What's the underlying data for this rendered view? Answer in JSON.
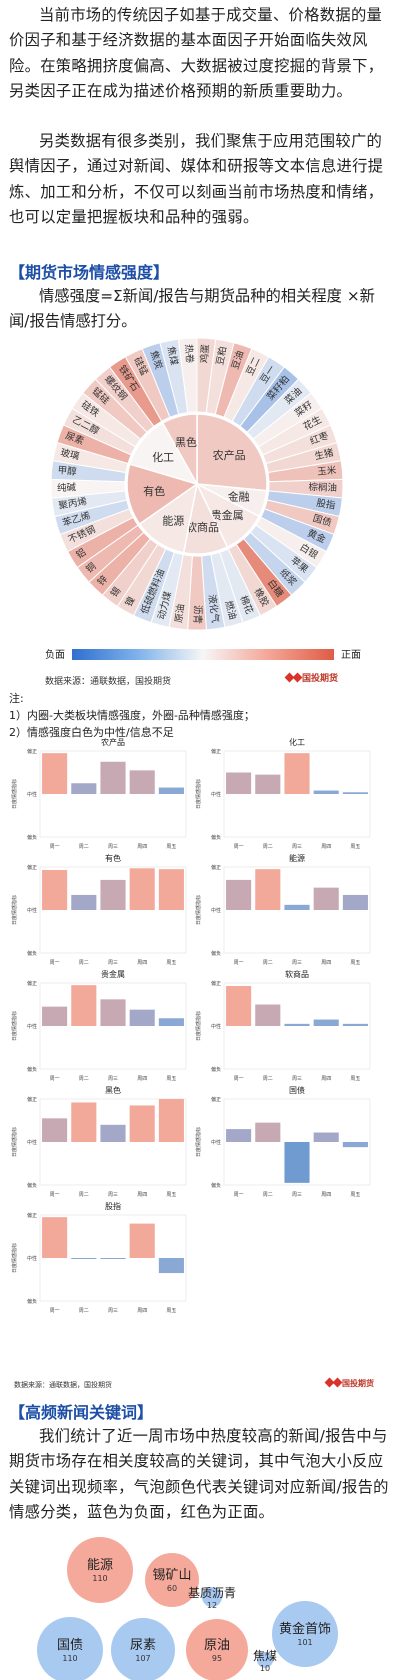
{
  "intro": {
    "para1": "当前市场的传统因子如基于成交量、价格数据的量价因子和基于经济数据的基本面因子开始面临失效风险。在策略拥挤度偏高、大数据被过度挖掘的背景下，另类因子正在成为描述价格预期的新质重要助力。",
    "para2": "另类数据有很多类别，我们聚焦于应用范围较广的舆情因子，通过对新闻、媒体和研报等文本信息进行提炼、加工和分析，不仅可以刻画当前市场热度和情绪，也可以定量把握板块和品种的强弱。"
  },
  "section1": {
    "heading": "【期货市场情感强度】",
    "formula": "情感强度=Σ新闻/报告与期货品种的相关程度 ×新闻/报告情感打分。"
  },
  "sunburst": {
    "inner": [
      {
        "label": "农产品",
        "value": 0.3
      },
      {
        "label": "金融",
        "value": 0.05
      },
      {
        "label": "贵金属",
        "value": 0.1
      },
      {
        "label": "软商品",
        "value": 0.15
      },
      {
        "label": "能源",
        "value": 0.1
      },
      {
        "label": "有色",
        "value": 0.4
      },
      {
        "label": "化工",
        "value": 0.02
      },
      {
        "label": "黑色",
        "value": 0.3
      }
    ],
    "outer": [
      {
        "label": "鸡蛋",
        "value": 0.2
      },
      {
        "label": "豆粕",
        "value": 0.15
      },
      {
        "label": "豆油",
        "value": 0.4
      },
      {
        "label": "豆二",
        "value": 0.1
      },
      {
        "label": "豆一",
        "value": -0.2
      },
      {
        "label": "菜籽粕",
        "value": -0.4
      },
      {
        "label": "菜油",
        "value": -0.1
      },
      {
        "label": "菜籽",
        "value": 0.05
      },
      {
        "label": "花生",
        "value": 0.1
      },
      {
        "label": "红枣",
        "value": 0.15
      },
      {
        "label": "生猪",
        "value": 0.2
      },
      {
        "label": "玉米",
        "value": 0.35
      },
      {
        "label": "棕榈油",
        "value": 0.25
      },
      {
        "label": "股指",
        "value": -0.3
      },
      {
        "label": "国债",
        "value": 0.3
      },
      {
        "label": "黄金",
        "value": -0.3
      },
      {
        "label": "白银",
        "value": 0.05
      },
      {
        "label": "苹果",
        "value": -0.15
      },
      {
        "label": "纸浆",
        "value": -0.25
      },
      {
        "label": "白糖",
        "value": 0.7
      },
      {
        "label": "橡胶",
        "value": 0.2
      },
      {
        "label": "棉花",
        "value": -0.1
      },
      {
        "label": "燃油",
        "value": -0.1
      },
      {
        "label": "液化气",
        "value": -0.2
      },
      {
        "label": "沥青",
        "value": 0.3
      },
      {
        "label": "原油",
        "value": 0.15
      },
      {
        "label": "动力煤",
        "value": -0.1
      },
      {
        "label": "低硫燃料油",
        "value": -0.2
      },
      {
        "label": "镍",
        "value": 0.2
      },
      {
        "label": "锡",
        "value": 0.25
      },
      {
        "label": "锌",
        "value": 0.45
      },
      {
        "label": "铜",
        "value": 0.4
      },
      {
        "label": "铝",
        "value": 0.45
      },
      {
        "label": "不锈钢",
        "value": 0.15
      },
      {
        "label": "苯乙烯",
        "value": -0.2
      },
      {
        "label": "聚丙烯",
        "value": -0.1
      },
      {
        "label": "纯碱",
        "value": 0.02
      },
      {
        "label": "甲醇",
        "value": -0.2
      },
      {
        "label": "玻璃",
        "value": 0.1
      },
      {
        "label": "尿素",
        "value": 0.45
      },
      {
        "label": "乙二醇",
        "value": 0.15
      },
      {
        "label": "硅铁",
        "value": 0.1
      },
      {
        "label": "锰硅",
        "value": 0.3
      },
      {
        "label": "螺纹钢",
        "value": 0.25
      },
      {
        "label": "铁矿石",
        "value": 0.6
      },
      {
        "label": "硅锰",
        "value": 0.3
      },
      {
        "label": "焦炭",
        "value": -0.3
      },
      {
        "label": "焦煤",
        "value": -0.15
      },
      {
        "label": "热卷",
        "value": 0.05
      }
    ],
    "legend_neg": "负面",
    "legend_pos": "正面",
    "source": "数据来源：通联数据，国投期货",
    "logo": "国投期货"
  },
  "notes": {
    "title": "注:",
    "n1": "1）内圈-大类板块情感强度，外圈-品种情感强度；",
    "n2": "2）情感强度白色为中性/信息不足"
  },
  "bar_charts": {
    "ytop": "偏正",
    "ymid": "中性",
    "ybot": "偏负",
    "ylabel": "日度情感指标",
    "days": [
      "周一",
      "周二",
      "周三",
      "周四",
      "周五"
    ],
    "chart_data": [
      {
        "type": "bar",
        "title": "农产品",
        "categories": [
          "周一",
          "周二",
          "周三",
          "周四",
          "周五"
        ],
        "values": [
          0.95,
          0.25,
          0.75,
          0.55,
          0.15
        ]
      },
      {
        "type": "bar",
        "title": "化工",
        "categories": [
          "周一",
          "周二",
          "周三",
          "周四",
          "周五"
        ],
        "values": [
          0.5,
          0.45,
          0.95,
          0.08,
          0.04
        ]
      },
      {
        "type": "bar",
        "title": "有色",
        "categories": [
          "周一",
          "周二",
          "周三",
          "周四",
          "周五"
        ],
        "values": [
          0.93,
          0.35,
          0.7,
          0.97,
          0.95
        ]
      },
      {
        "type": "bar",
        "title": "能源",
        "categories": [
          "周一",
          "周二",
          "周三",
          "周四",
          "周五"
        ],
        "values": [
          0.7,
          0.95,
          0.12,
          0.52,
          0.35
        ]
      },
      {
        "type": "bar",
        "title": "贵金属",
        "categories": [
          "周一",
          "周二",
          "周三",
          "周四",
          "周五"
        ],
        "values": [
          0.45,
          0.95,
          0.62,
          0.38,
          0.18
        ]
      },
      {
        "type": "bar",
        "title": "软商品",
        "categories": [
          "周一",
          "周二",
          "周三",
          "周四",
          "周五"
        ],
        "values": [
          0.93,
          0.5,
          0.05,
          0.15,
          0.05
        ]
      },
      {
        "type": "bar",
        "title": "黑色",
        "categories": [
          "周一",
          "周二",
          "周三",
          "周四",
          "周五"
        ],
        "values": [
          0.55,
          0.92,
          0.4,
          0.85,
          1.0
        ]
      },
      {
        "type": "bar",
        "title": "国债",
        "categories": [
          "周一",
          "周二",
          "周三",
          "周四",
          "周五"
        ],
        "values": [
          0.3,
          0.45,
          -0.95,
          0.22,
          -0.12
        ]
      },
      {
        "type": "bar",
        "title": "股指",
        "categories": [
          "周一",
          "周二",
          "周三",
          "周四",
          "周五"
        ],
        "values": [
          0.95,
          -0.02,
          -0.02,
          0.8,
          -0.35
        ]
      }
    ],
    "source": "数据来源：通联数据，国投期货",
    "logo": "国投期货"
  },
  "section2": {
    "heading": "【高频新闻关键词】",
    "para": "我们统计了近一周市场中热度较高的新闻/报告中与期货市场存在相关度较高的关键词，其中气泡大小反应关键词出现频率，气泡颜色代表关键词对应新闻/报告的情感分类，蓝色为负面，红色为正面。"
  },
  "bubbles": [
    {
      "label": "能源",
      "count": "110",
      "sentiment": "positive"
    },
    {
      "label": "锡矿山",
      "count": "60",
      "sentiment": "positive"
    },
    {
      "label": "基质沥青",
      "count": "12",
      "sentiment": "negative"
    },
    {
      "label": "黄金首饰",
      "count": "101",
      "sentiment": "negative"
    },
    {
      "label": "国债",
      "count": "110",
      "sentiment": "negative"
    },
    {
      "label": "尿素",
      "count": "107",
      "sentiment": "negative"
    },
    {
      "label": "原油",
      "count": "95",
      "sentiment": "positive"
    },
    {
      "label": "焦煤",
      "count": "10",
      "sentiment": "negative"
    }
  ],
  "colors": {
    "positive": "#f4a090",
    "negative": "#9fc3ee",
    "heading": "#1e4fa6"
  }
}
